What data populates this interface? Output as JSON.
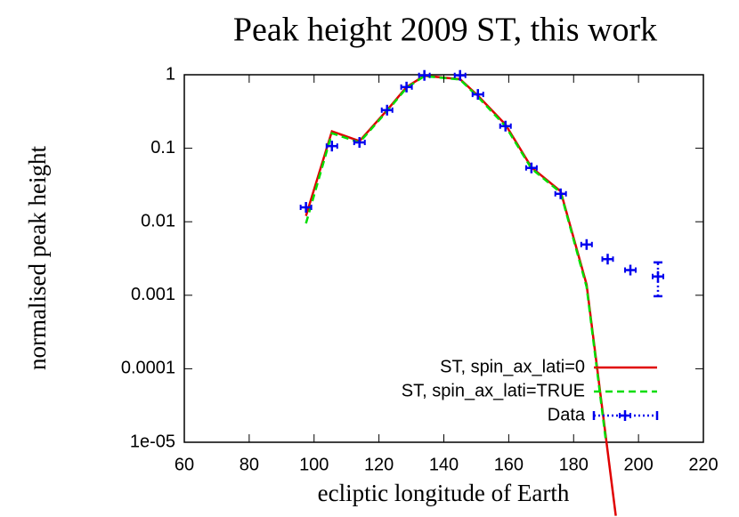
{
  "chart_data": {
    "type": "line",
    "title": "Peak height 2009 ST, this work",
    "x_label": "ecliptic longitude of Earth",
    "y_label": "normalised peak height",
    "log_y": true,
    "xlim": [
      60,
      220
    ],
    "xticks": [
      60,
      80,
      100,
      120,
      140,
      160,
      180,
      200,
      220
    ],
    "ylim": [
      1e-05,
      1
    ],
    "yticks": [
      {
        "value": 1e-05,
        "label": "1e-05"
      },
      0.0001,
      0.001,
      0.01,
      0.1,
      1
    ],
    "legend": "bottom-right",
    "series": [
      {
        "name": "ST, spin_ax_lati=0",
        "color": "#e00000",
        "style": "solid",
        "x": [
          97.5,
          105.5,
          114,
          122.5,
          128.5,
          134,
          145,
          150.5,
          159,
          167,
          176,
          184,
          193
        ],
        "values": [
          0.012,
          0.17,
          0.125,
          0.33,
          0.68,
          0.97,
          0.87,
          0.52,
          0.21,
          0.055,
          0.026,
          0.0014,
          1e-06
        ]
      },
      {
        "name": "ST, spin_ax_lati=TRUE",
        "color": "#00dd00",
        "style": "dashed",
        "x": [
          97.5,
          105.5,
          114,
          122.5,
          128.5,
          134,
          145,
          150.5,
          159,
          167,
          176,
          184,
          190
        ],
        "values": [
          0.0095,
          0.16,
          0.12,
          0.32,
          0.66,
          0.96,
          0.86,
          0.5,
          0.2,
          0.053,
          0.025,
          0.0013,
          1e-05
        ]
      },
      {
        "name": "Data",
        "color": "#0000ee",
        "style": "points",
        "x": [
          97.5,
          105.5,
          114,
          122.5,
          128.5,
          134,
          145,
          150.5,
          159,
          167,
          176,
          184,
          190.5,
          197.5,
          206
        ],
        "values": [
          0.0157,
          0.107,
          0.12,
          0.33,
          0.68,
          0.98,
          0.98,
          0.54,
          0.2,
          0.054,
          0.024,
          0.0049,
          0.0031,
          0.0022,
          0.0018
        ],
        "ylow": [
          null,
          null,
          null,
          null,
          null,
          null,
          null,
          null,
          null,
          null,
          null,
          null,
          null,
          null,
          0.00097
        ],
        "yhigh": [
          null,
          null,
          null,
          null,
          null,
          null,
          null,
          null,
          null,
          null,
          null,
          null,
          null,
          null,
          0.0028
        ]
      }
    ]
  }
}
